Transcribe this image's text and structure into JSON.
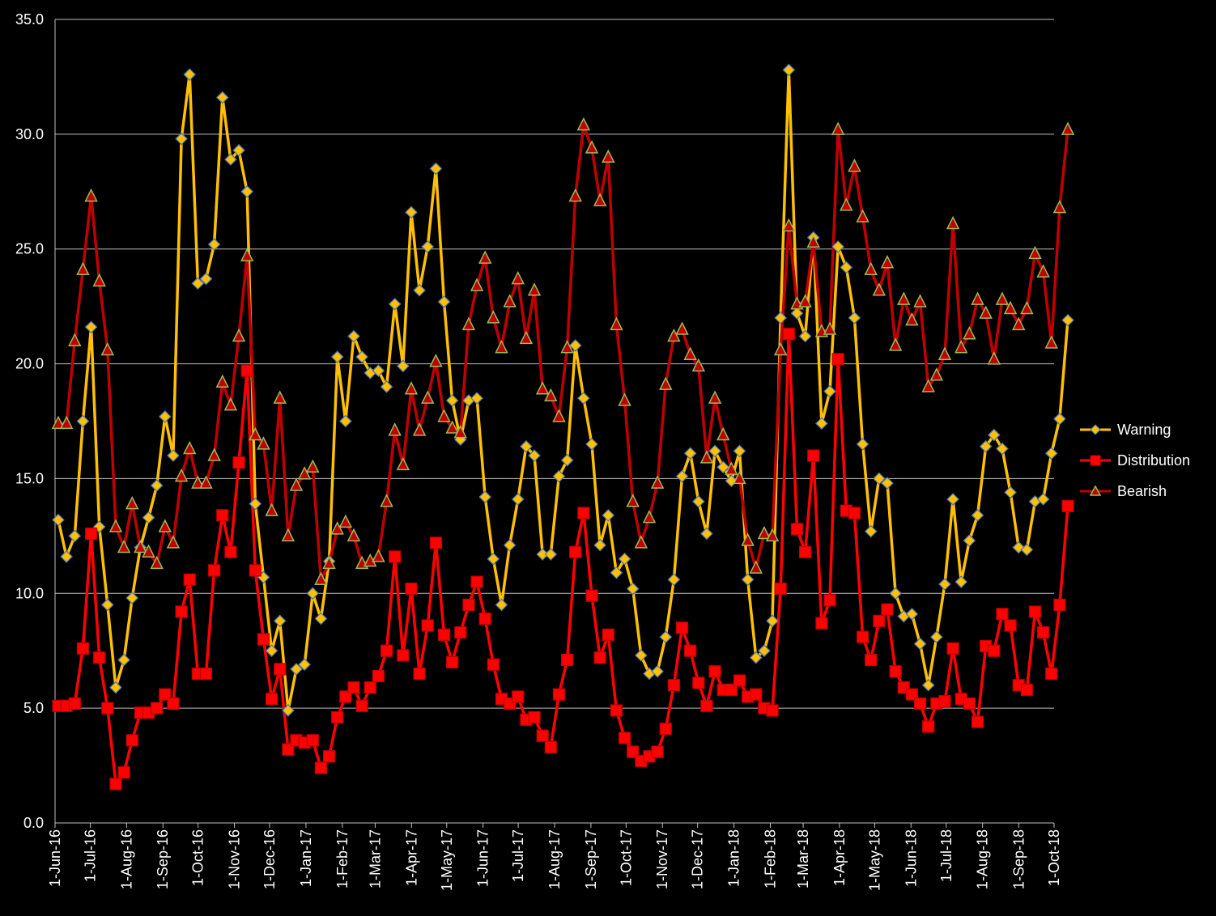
{
  "chart_data": {
    "type": "line",
    "y_ticks": [
      "0.0",
      "5.0",
      "10.0",
      "15.0",
      "20.0",
      "25.0",
      "30.0",
      "35.0"
    ],
    "ylim": [
      0,
      35
    ],
    "grid": true,
    "legend_position": "right",
    "background": "#000000",
    "x_tick_labels": [
      "1-Jun-16",
      "1-Jul-16",
      "1-Aug-16",
      "1-Sep-16",
      "1-Oct-16",
      "1-Nov-16",
      "1-Dec-16",
      "1-Jan-17",
      "1-Feb-17",
      "1-Mar-17",
      "1-Apr-17",
      "1-May-17",
      "1-Jun-17",
      "1-Jul-17",
      "1-Aug-17",
      "1-Sep-17",
      "1-Oct-17",
      "1-Nov-17",
      "1-Dec-17",
      "1-Jan-18",
      "1-Feb-18",
      "1-Mar-18",
      "1-Apr-18",
      "1-May-18",
      "1-Jun-18",
      "1-Jul-18",
      "1-Aug-18",
      "1-Sep-18",
      "1-Oct-18"
    ],
    "x_start": "2016-06-01",
    "x_step_days": 7,
    "series": [
      {
        "name": "Warning",
        "color": "#FFC000",
        "marker": "diamond",
        "values": [
          13.2,
          11.6,
          12.5,
          17.5,
          21.6,
          12.9,
          9.5,
          5.9,
          7.1,
          9.8,
          12.0,
          13.3,
          14.7,
          17.7,
          16.0,
          29.8,
          32.6,
          23.5,
          23.7,
          25.2,
          31.6,
          28.9,
          29.3,
          27.5,
          13.9,
          10.7,
          7.5,
          8.8,
          4.9,
          6.7,
          6.9,
          10.0,
          8.9,
          11.4,
          20.3,
          17.5,
          21.2,
          20.3,
          19.6,
          19.7,
          19.0,
          22.6,
          19.9,
          26.6,
          23.2,
          25.1,
          28.5,
          22.7,
          18.4,
          16.7,
          18.4,
          18.5,
          14.2,
          11.5,
          9.5,
          12.1,
          14.1,
          16.4,
          16.0,
          11.7,
          11.7,
          15.1,
          15.8,
          20.8,
          18.5,
          16.5,
          12.1,
          13.4,
          10.9,
          11.5,
          10.2,
          7.3,
          6.5,
          6.6,
          8.1,
          10.6,
          15.1,
          16.1,
          14.0,
          12.6,
          16.2,
          15.5,
          14.9,
          16.2,
          10.6,
          7.2,
          7.5,
          8.8,
          22.0,
          32.8,
          22.2,
          21.2,
          25.5,
          17.4,
          18.8,
          25.1,
          24.2,
          22.0,
          16.5,
          12.7,
          15.0,
          14.8,
          10.0,
          9.0,
          9.1,
          7.8,
          6.0,
          8.1,
          10.4,
          14.1,
          10.5,
          12.3,
          13.4,
          16.4,
          16.9,
          16.3,
          14.4,
          12.0,
          11.9,
          14.0,
          14.1,
          16.1,
          17.6,
          21.9
        ]
      },
      {
        "name": "Distribution",
        "color": "#FF0000",
        "marker": "square",
        "values": [
          5.1,
          5.1,
          5.2,
          7.6,
          12.6,
          7.2,
          5.0,
          1.7,
          2.2,
          3.6,
          4.8,
          4.8,
          5.0,
          5.6,
          5.2,
          9.2,
          10.6,
          6.5,
          6.5,
          11.0,
          13.4,
          11.8,
          15.7,
          19.7,
          11.0,
          8.0,
          5.4,
          6.7,
          3.2,
          3.6,
          3.5,
          3.6,
          2.4,
          2.9,
          4.6,
          5.5,
          5.9,
          5.1,
          5.9,
          6.4,
          7.5,
          11.6,
          7.3,
          10.2,
          6.5,
          8.6,
          12.2,
          8.2,
          7.0,
          8.3,
          9.5,
          10.5,
          8.9,
          6.9,
          5.4,
          5.2,
          5.5,
          4.5,
          4.6,
          3.8,
          3.3,
          5.6,
          7.1,
          11.8,
          13.5,
          9.9,
          7.2,
          8.2,
          4.9,
          3.7,
          3.1,
          2.7,
          2.9,
          3.1,
          4.1,
          6.0,
          8.5,
          7.5,
          6.1,
          5.1,
          6.6,
          5.8,
          5.8,
          6.2,
          5.5,
          5.6,
          5.0,
          4.9,
          10.2,
          21.3,
          12.8,
          11.8,
          16.0,
          8.7,
          9.7,
          20.2,
          13.6,
          13.5,
          8.1,
          7.1,
          8.8,
          9.3,
          6.6,
          5.9,
          5.6,
          5.2,
          4.2,
          5.2,
          5.3,
          7.6,
          5.4,
          5.2,
          4.4,
          7.7,
          7.5,
          9.1,
          8.6,
          6.0,
          5.8,
          9.2,
          8.3,
          6.5,
          9.5,
          13.8
        ]
      },
      {
        "name": "Bearish",
        "color": "#C00000",
        "marker": "triangle",
        "values": [
          17.4,
          17.4,
          21.0,
          24.1,
          27.3,
          23.6,
          20.6,
          12.9,
          12.0,
          13.9,
          12.0,
          11.8,
          11.3,
          12.9,
          12.2,
          15.1,
          16.3,
          14.8,
          14.8,
          16.0,
          19.2,
          18.2,
          21.2,
          24.7,
          16.9,
          16.5,
          13.6,
          18.5,
          12.5,
          14.7,
          15.2,
          15.5,
          10.6,
          11.3,
          12.8,
          13.1,
          12.5,
          11.3,
          11.4,
          11.6,
          14.0,
          17.1,
          15.6,
          18.9,
          17.1,
          18.5,
          20.1,
          17.7,
          17.2,
          17.0,
          21.7,
          23.4,
          24.6,
          22.0,
          20.7,
          22.7,
          23.7,
          21.1,
          23.2,
          18.9,
          18.6,
          17.7,
          20.7,
          27.3,
          30.4,
          29.4,
          27.1,
          29.0,
          21.7,
          18.4,
          14.0,
          12.2,
          13.3,
          14.8,
          19.1,
          21.2,
          21.5,
          20.4,
          19.9,
          15.9,
          18.5,
          16.9,
          15.4,
          15.0,
          12.3,
          11.1,
          12.6,
          12.5,
          20.6,
          26.0,
          22.6,
          22.7,
          25.3,
          21.4,
          21.5,
          30.2,
          26.9,
          28.6,
          26.4,
          24.1,
          23.2,
          24.4,
          20.8,
          22.8,
          21.9,
          22.7,
          19.0,
          19.5,
          20.4,
          26.1,
          20.7,
          21.3,
          22.8,
          22.2,
          20.2,
          22.8,
          22.4,
          21.7,
          22.4,
          24.8,
          24.0,
          20.9,
          26.8,
          30.2
        ]
      }
    ]
  }
}
